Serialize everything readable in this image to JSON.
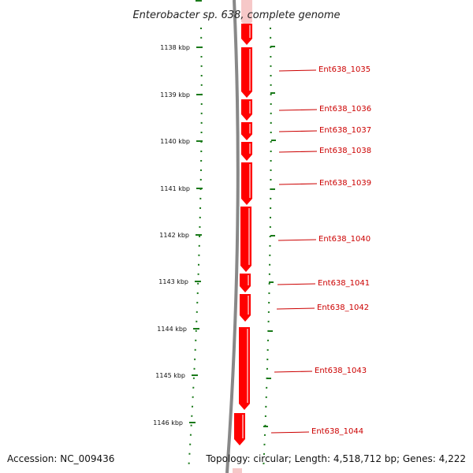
{
  "title": "Enterobacter sp. 638, complete genome",
  "accession": "Accession: NC_009436",
  "topology": "Topology: circular; Length: 4,518,712 bp; Genes: 4,222",
  "colors": {
    "gene": "#ff0000",
    "gene_faint": "#f6c8c8",
    "backbone": "#888888",
    "tick": "#1a7a1a",
    "label": "#cc0000"
  },
  "kbp_ticks": [
    "1138 kbp",
    "1139 kbp",
    "1140 kbp",
    "1141 kbp",
    "1142 kbp",
    "1143 kbp",
    "1144 kbp",
    "1145 kbp",
    "1146 kbp"
  ],
  "genes": [
    {
      "label": "Ent638_1035"
    },
    {
      "label": "Ent638_1036"
    },
    {
      "label": "Ent638_1037"
    },
    {
      "label": "Ent638_1038"
    },
    {
      "label": "Ent638_1039"
    },
    {
      "label": "Ent638_1040"
    },
    {
      "label": "Ent638_1041"
    },
    {
      "label": "Ent638_1042"
    },
    {
      "label": "Ent638_1043"
    },
    {
      "label": "Ent638_1044"
    }
  ]
}
